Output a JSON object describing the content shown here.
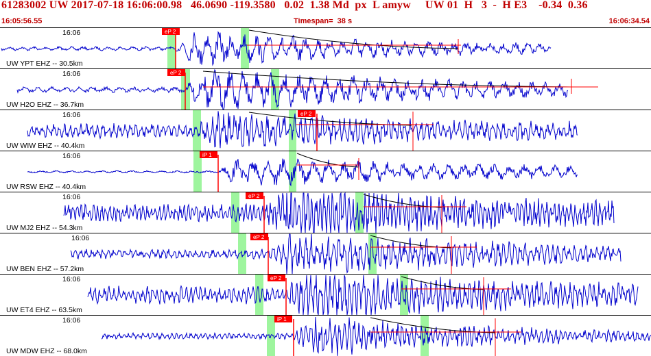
{
  "header": {
    "title": "61283002 UW 2017-07-18 16:06:00.98   46.0690 -119.3580   0.02  1.38 Md  px  L amyw     UW 01  H   3  -  H E3    -0.34  0.36",
    "start_time": "16:05:56.55",
    "timespan": "Timespan=  38 s",
    "end_time": "16:06:34.54"
  },
  "colors": {
    "trace": "#0000cc",
    "pick": "#ff0000",
    "window": "#9ef59e",
    "header_text": "#c00000",
    "decay_curve": "#000000"
  },
  "traces": [
    {
      "time_label": "16:06",
      "station_label": "UW YPT EHZ -- 30.5km",
      "pick_label": "eP 2"
    },
    {
      "time_label": "16:06",
      "station_label": "UW H2O EHZ -- 36.7km",
      "pick_label": "eP 2"
    },
    {
      "time_label": "16:06",
      "station_label": "UW WIW EHZ -- 40.4km",
      "pick_label": "eP 2"
    },
    {
      "time_label": "16:06",
      "station_label": "UW RSW EHZ -- 40.4km",
      "pick_label": "iP 1"
    },
    {
      "time_label": "16:06",
      "station_label": "UW MJ2 EHZ -- 54.3km",
      "pick_label": "eP 2"
    },
    {
      "time_label": "16:06",
      "station_label": "UW BEN EHZ -- 57.2km",
      "pick_label": "eP 2"
    },
    {
      "time_label": "16:06",
      "station_label": "UW ET4 EHZ -- 63.5km",
      "pick_label": "eP 2"
    },
    {
      "time_label": "16:06",
      "station_label": "UW MDW EHZ -- 68.0km",
      "pick_label": "iP 1"
    }
  ]
}
